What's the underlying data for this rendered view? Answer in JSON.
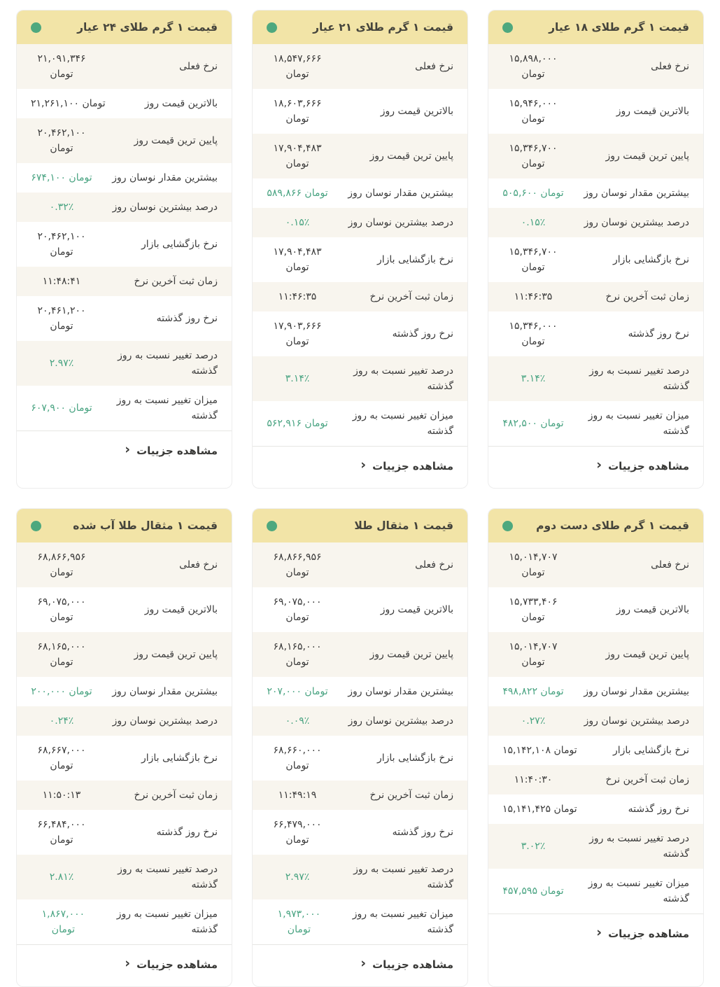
{
  "colors": {
    "header_bg": "#f2e4a7",
    "status_dot": "#4ea87e",
    "positive_green": "#48a381",
    "row_alt_bg": "#f8f5ee",
    "card_border": "#ededed"
  },
  "labels": {
    "rows": [
      "نرخ فعلی",
      "بالاترین قیمت روز",
      "پایین ترین قیمت روز",
      "بیشترین مقدار نوسان روز",
      "درصد بیشترین نوسان روز",
      "نرخ بازگشایی بازار",
      "زمان ثبت آخرین نرخ",
      "نرخ روز گذشته",
      "درصد تغییر نسبت به روز گذشته",
      "میزان تغییر نسبت به روز گذشته"
    ],
    "details_label": "مشاهده جزییات",
    "details_chevron": "‹"
  },
  "green_rows": [
    3,
    4,
    8,
    9
  ],
  "alt_rows": [
    0,
    2,
    4,
    6,
    8
  ],
  "cards": [
    {
      "title": "قیمت ۱ گرم طلای ۱۸ عیار",
      "values": [
        "۱۵,۸۹۸,۰۰۰\nتومان",
        "۱۵,۹۴۶,۰۰۰\nتومان",
        "۱۵,۳۴۶,۷۰۰\nتومان",
        "۵۰۵,۶۰۰ تومان",
        "۰.۱۵٪",
        "۱۵,۳۴۶,۷۰۰\nتومان",
        "۱۱:۴۶:۳۵",
        "۱۵,۳۴۶,۰۰۰\nتومان",
        "۳.۱۴٪",
        "۴۸۲,۵۰۰ تومان"
      ]
    },
    {
      "title": "قیمت ۱ گرم طلای ۲۱ عیار",
      "values": [
        "۱۸,۵۴۷,۶۶۶\nتومان",
        "۱۸,۶۰۳,۶۶۶\nتومان",
        "۱۷,۹۰۴,۴۸۳\nتومان",
        "۵۸۹,۸۶۶ تومان",
        "۰.۱۵٪",
        "۱۷,۹۰۴,۴۸۳\nتومان",
        "۱۱:۴۶:۳۵",
        "۱۷,۹۰۳,۶۶۶\nتومان",
        "۳.۱۴٪",
        "۵۶۲,۹۱۶ تومان"
      ]
    },
    {
      "title": "قیمت ۱ گرم طلای ۲۴ عیار",
      "values": [
        "۲۱,۰۹۱,۳۴۶\nتومان",
        "۲۱,۲۶۱,۱۰۰ تومان",
        "۲۰,۴۶۲,۱۰۰\nتومان",
        "۶۷۴,۱۰۰ تومان",
        "۰.۳۲٪",
        "۲۰,۴۶۲,۱۰۰\nتومان",
        "۱۱:۴۸:۴۱",
        "۲۰,۴۶۱,۲۰۰\nتومان",
        "۲.۹۷٪",
        "۶۰۷,۹۰۰ تومان"
      ]
    },
    {
      "title": "قیمت ۱ گرم طلای دست دوم",
      "values": [
        "۱۵,۰۱۴,۷۰۷\nتومان",
        "۱۵,۷۳۳,۴۰۶\nتومان",
        "۱۵,۰۱۴,۷۰۷\nتومان",
        "۴۹۸,۸۲۲ تومان",
        "۰.۲۷٪",
        "۱۵,۱۴۲,۱۰۸ تومان",
        "۱۱:۴۰:۳۰",
        "۱۵,۱۴۱,۴۲۵ تومان",
        "۳.۰۲٪",
        "۴۵۷,۵۹۵ تومان"
      ]
    },
    {
      "title": "قیمت ۱ مثقال طلا",
      "values": [
        "۶۸,۸۶۶,۹۵۶\nتومان",
        "۶۹,۰۷۵,۰۰۰\nتومان",
        "۶۸,۱۶۵,۰۰۰\nتومان",
        "۲۰۷,۰۰۰ تومان",
        "۰.۰۹٪",
        "۶۸,۶۶۰,۰۰۰\nتومان",
        "۱۱:۴۹:۱۹",
        "۶۶,۴۷۹,۰۰۰\nتومان",
        "۲.۹۷٪",
        "۱,۹۷۳,۰۰۰ تومان"
      ]
    },
    {
      "title": "قیمت ۱ مثقال طلا آب شده",
      "values": [
        "۶۸,۸۶۶,۹۵۶\nتومان",
        "۶۹,۰۷۵,۰۰۰\nتومان",
        "۶۸,۱۶۵,۰۰۰\nتومان",
        "۲۰۰,۰۰۰ تومان",
        "۰.۲۴٪",
        "۶۸,۶۶۷,۰۰۰\nتومان",
        "۱۱:۵۰:۱۳",
        "۶۶,۴۸۴,۰۰۰\nتومان",
        "۲.۸۱٪",
        "۱,۸۶۷,۰۰۰ تومان"
      ]
    }
  ]
}
